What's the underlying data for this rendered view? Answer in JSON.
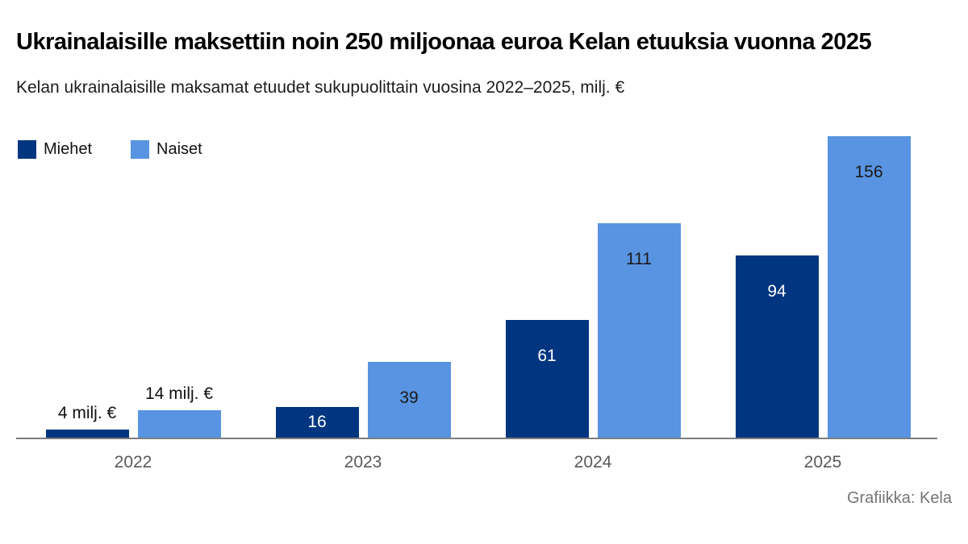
{
  "footer": {
    "credit": "Grafiikka: Kela"
  },
  "chart_data": {
    "type": "bar",
    "title": "Ukrainalaisille maksettiin noin 250 miljoonaa euroa Kelan etuuksia vuonna 2025",
    "subtitle": "Kelan ukrainalaisille maksamat etuudet sukupuolittain vuosina 2022–2025, milj. €",
    "categories": [
      "2022",
      "2023",
      "2024",
      "2025"
    ],
    "series": [
      {
        "name": "Miehet",
        "color": "#003580",
        "inside_label_color": "#ffffff",
        "values": [
          4,
          16,
          61,
          94
        ],
        "labels": [
          "4 milj. €",
          "16",
          "61",
          "94"
        ],
        "label_placement": [
          "outside",
          "inside",
          "inside",
          "inside"
        ]
      },
      {
        "name": "Naiset",
        "color": "#5894e1",
        "inside_label_color": "#1a1a1a",
        "values": [
          14,
          39,
          111,
          156
        ],
        "labels": [
          "14 milj. €",
          "39",
          "111",
          "156"
        ],
        "label_placement": [
          "outside",
          "inside",
          "inside",
          "inside"
        ]
      }
    ],
    "unit": "milj. €",
    "ylim": [
      0,
      160
    ],
    "grid": false,
    "legend_position": "top-left",
    "axis_line_color": "#7d7d7d",
    "category_label_color": "#595959",
    "outside_label_color": "#111111"
  }
}
